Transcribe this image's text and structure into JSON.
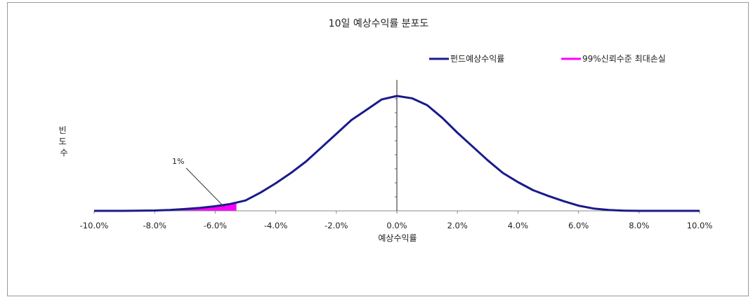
{
  "chart_data": {
    "type": "line",
    "title": "10일 예상수익률 분포도",
    "xlabel": "예상수익률",
    "ylabel": "빈도수",
    "xlim": [
      -10.0,
      10.0
    ],
    "x_tick_labels": [
      "-10.0%",
      "-8.0%",
      "-6.0%",
      "-4.0%",
      "-2.0%",
      "0.0%",
      "2.0%",
      "4.0%",
      "6.0%",
      "8.0%",
      "10.0%"
    ],
    "x_ticks": [
      -10,
      -8,
      -6,
      -4,
      -2,
      0,
      2,
      4,
      6,
      8,
      10
    ],
    "grid": false,
    "legend_position": "top-right",
    "series": [
      {
        "name": "펀드예상수익률",
        "color": "#1a1a8c",
        "x": [
          -10.0,
          -9.0,
          -8.0,
          -7.5,
          -7.0,
          -6.5,
          -6.0,
          -5.5,
          -5.0,
          -4.5,
          -4.0,
          -3.5,
          -3.0,
          -2.5,
          -2.0,
          -1.5,
          -1.0,
          -0.5,
          0.0,
          0.5,
          1.0,
          1.5,
          2.0,
          2.5,
          3.0,
          3.5,
          4.0,
          4.5,
          5.0,
          5.5,
          6.0,
          6.5,
          7.0,
          7.5,
          8.0,
          9.0,
          10.0
        ],
        "y": [
          0.0,
          0.0,
          0.3,
          0.8,
          1.6,
          2.6,
          4.0,
          6.0,
          9.0,
          16.0,
          24.0,
          33.0,
          43.0,
          55.0,
          67.0,
          79.0,
          88.0,
          97.0,
          100.0,
          98.0,
          92.0,
          81.0,
          68.0,
          56.0,
          44.0,
          33.0,
          25.0,
          18.0,
          13.0,
          8.5,
          4.5,
          2.0,
          0.8,
          0.2,
          0.0,
          0.0,
          0.0
        ]
      },
      {
        "name": "99%신뢰수준 최대손실",
        "color": "#ff00ff",
        "cutoff_x": -5.3
      }
    ],
    "annotations": [
      {
        "text": "1%",
        "points_to_x": -5.7
      }
    ]
  }
}
